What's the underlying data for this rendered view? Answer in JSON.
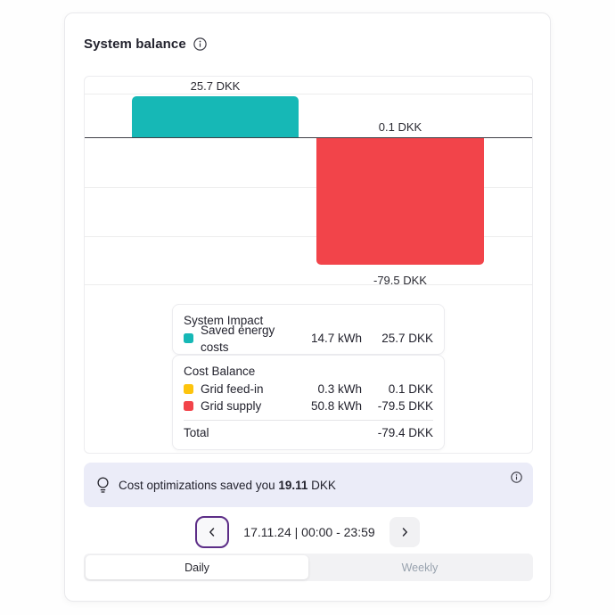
{
  "card": {
    "title": "System balance"
  },
  "icons": {
    "title_info": "info-circle",
    "banner_bulb": "lightbulb",
    "banner_info": "info-circle",
    "prev": "chevron-left",
    "next": "chevron-right"
  },
  "chart_data": {
    "type": "bar",
    "title": "System balance",
    "unit": "DKK",
    "baseline": 0,
    "ylim": [
      -95,
      30
    ],
    "grid": true,
    "series": [
      {
        "name": "Saved energy costs",
        "group": "System Impact",
        "column": 0,
        "kwh": 14.7,
        "dkk": 25.7,
        "color": "#16b8b6",
        "label": "25.7 DKK"
      },
      {
        "name": "Grid feed-in",
        "group": "Cost Balance",
        "column": 1,
        "kwh": 0.3,
        "dkk": 0.1,
        "color": "#fdc40d",
        "label": "0.1 DKK"
      },
      {
        "name": "Grid supply",
        "group": "Cost Balance",
        "column": 1,
        "kwh": 50.8,
        "dkk": -79.5,
        "color": "#f2444a",
        "label": "-79.5 DKK"
      }
    ]
  },
  "legend": {
    "system_impact": {
      "title": "System Impact",
      "rows": [
        {
          "label": "Saved energy costs",
          "kwh": "14.7 kWh",
          "dkk": "25.7 DKK",
          "color": "#16b8b6"
        }
      ]
    },
    "cost_balance": {
      "title": "Cost Balance",
      "rows": [
        {
          "label": "Grid feed-in",
          "kwh": "0.3 kWh",
          "dkk": "0.1 DKK",
          "color": "#fdc40d"
        },
        {
          "label": "Grid supply",
          "kwh": "50.8 kWh",
          "dkk": "-79.5 DKK",
          "color": "#f2444a"
        }
      ],
      "total_label": "Total",
      "total_value": "-79.4 DKK"
    }
  },
  "savings_banner": {
    "prefix": "Cost optimizations saved you",
    "amount": "19.11",
    "suffix": "DKK"
  },
  "date_nav": {
    "label": "17.11.24 | 00:00 - 23:59"
  },
  "tabs": {
    "daily": "Daily",
    "weekly": "Weekly"
  },
  "colors": {
    "teal": "#16b8b6",
    "yellow": "#fdc40d",
    "red": "#f2444a",
    "banner_bg": "#ebecf8",
    "accent_purple": "#5c2d87"
  }
}
